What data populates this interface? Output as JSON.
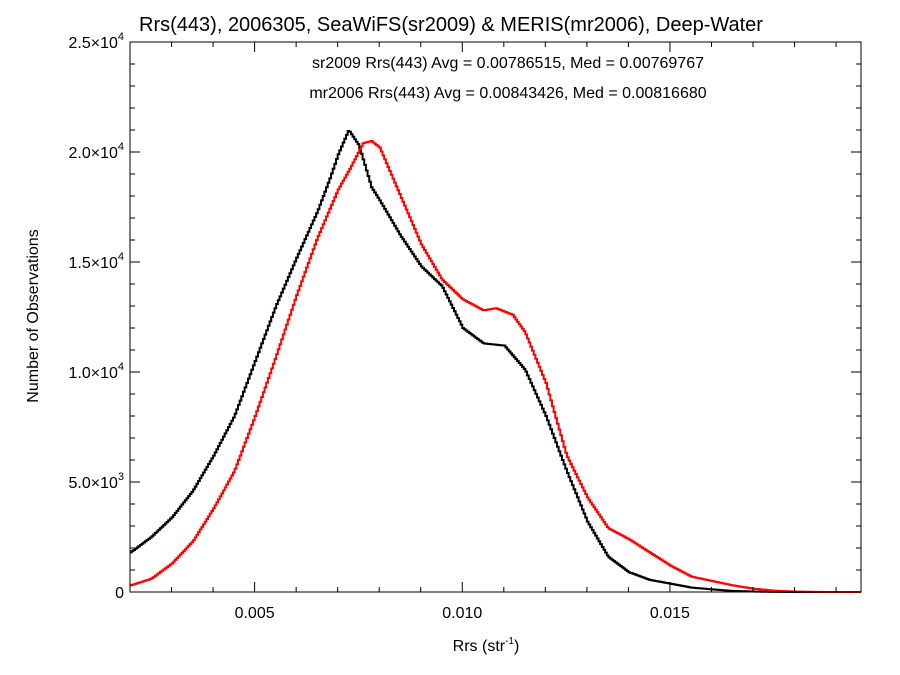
{
  "chart_data": {
    "type": "line",
    "title": "Rrs(443), 2006305, SeaWiFS(sr2009) & MERIS(mr2006), Deep-Water",
    "xlabel": {
      "base": "Rrs (str",
      "sup": "-1",
      "close": ")"
    },
    "ylabel": "Number of Observations",
    "xlim": [
      0.002,
      0.0196
    ],
    "ylim": [
      0,
      25000
    ],
    "x_ticks": [
      {
        "value": 0.005,
        "label": "0.005"
      },
      {
        "value": 0.01,
        "label": "0.010"
      },
      {
        "value": 0.015,
        "label": "0.015"
      }
    ],
    "y_ticks": [
      {
        "value": 0,
        "mant": "0",
        "exp": ""
      },
      {
        "value": 5000,
        "mant": "5.0×10",
        "exp": "3"
      },
      {
        "value": 10000,
        "mant": "1.0×10",
        "exp": "4"
      },
      {
        "value": 15000,
        "mant": "1.5×10",
        "exp": "4"
      },
      {
        "value": 20000,
        "mant": "2.0×10",
        "exp": "4"
      },
      {
        "value": 25000,
        "mant": "2.5×10",
        "exp": "4"
      }
    ],
    "grid": false,
    "annotations": [
      {
        "text": "sr2009 Rrs(443) Avg = 0.00786515, Med = 0.00769767",
        "color": "#000000"
      },
      {
        "text": "mr2006 Rrs(443) Avg = 0.00843426, Med = 0.00816680",
        "color": "#ff0000"
      }
    ],
    "series": [
      {
        "color": "#000000",
        "x": [
          0.002,
          0.0025,
          0.003,
          0.0035,
          0.004,
          0.0045,
          0.005,
          0.0055,
          0.006,
          0.0065,
          0.0068,
          0.007,
          0.00725,
          0.0075,
          0.0078,
          0.008,
          0.0085,
          0.009,
          0.0095,
          0.01,
          0.0105,
          0.011,
          0.0115,
          0.012,
          0.0125,
          0.013,
          0.0135,
          0.014,
          0.0145,
          0.015,
          0.0155,
          0.016,
          0.0165,
          0.017,
          0.0175,
          0.018,
          0.0185,
          0.019,
          0.0196
        ],
        "y": [
          1800,
          2500,
          3400,
          4600,
          6200,
          8000,
          10500,
          13000,
          15200,
          17300,
          18800,
          19900,
          21000,
          20300,
          18400,
          17800,
          16200,
          14800,
          13900,
          12000,
          11300,
          11200,
          10100,
          8000,
          5500,
          3200,
          1600,
          900,
          550,
          380,
          200,
          120,
          50,
          20,
          5,
          0,
          0,
          0,
          0
        ]
      },
      {
        "color": "#ff0000",
        "x": [
          0.002,
          0.0025,
          0.003,
          0.0035,
          0.004,
          0.0045,
          0.005,
          0.0055,
          0.006,
          0.0065,
          0.007,
          0.0073,
          0.0076,
          0.0078,
          0.008,
          0.0085,
          0.009,
          0.0095,
          0.01,
          0.0105,
          0.0108,
          0.0112,
          0.0115,
          0.012,
          0.0125,
          0.013,
          0.0135,
          0.014,
          0.0145,
          0.015,
          0.0155,
          0.016,
          0.0165,
          0.017,
          0.0175,
          0.018,
          0.0185,
          0.019,
          0.0196
        ],
        "y": [
          300,
          600,
          1300,
          2300,
          3800,
          5500,
          8000,
          10700,
          13500,
          16100,
          18300,
          19300,
          20400,
          20500,
          20200,
          18000,
          15800,
          14200,
          13300,
          12800,
          12900,
          12600,
          11800,
          9500,
          6200,
          4300,
          2900,
          2400,
          1800,
          1200,
          700,
          500,
          300,
          150,
          60,
          20,
          5,
          0,
          0
        ]
      }
    ]
  }
}
